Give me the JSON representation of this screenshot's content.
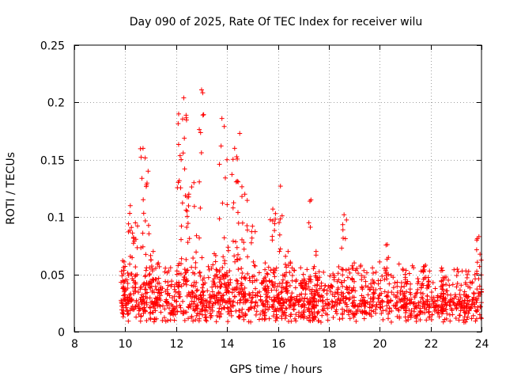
{
  "chart_data": {
    "type": "scatter",
    "title": "Day 090 of 2025, Rate Of TEC Index for receiver wilu",
    "xlabel": "GPS time / hours",
    "ylabel": "ROTI / TECUs",
    "xlim": [
      8,
      24
    ],
    "ylim": [
      0,
      0.25
    ],
    "x_ticks": [
      8,
      10,
      12,
      14,
      16,
      18,
      20,
      22,
      24
    ],
    "x_tick_labels": [
      "8",
      "10",
      "12",
      "14",
      "16",
      "18",
      "20",
      "22",
      "24"
    ],
    "y_ticks": [
      0,
      0.05,
      0.1,
      0.15,
      0.2,
      0.25
    ],
    "y_tick_labels": [
      "0",
      "0.05",
      "0.1",
      "0.15",
      "0.2",
      "0.25"
    ],
    "grid": true,
    "marker": "+",
    "color": "#ff0000",
    "series": [
      {
        "name": "ROTI",
        "peaks": [
          {
            "x": 9.9,
            "y": 0.062
          },
          {
            "x": 10.0,
            "y": 0.045
          },
          {
            "x": 10.2,
            "y": 0.11
          },
          {
            "x": 10.4,
            "y": 0.095
          },
          {
            "x": 10.7,
            "y": 0.16
          },
          {
            "x": 10.9,
            "y": 0.14
          },
          {
            "x": 11.1,
            "y": 0.07
          },
          {
            "x": 11.3,
            "y": 0.06
          },
          {
            "x": 12.1,
            "y": 0.19
          },
          {
            "x": 12.3,
            "y": 0.204
          },
          {
            "x": 12.5,
            "y": 0.12
          },
          {
            "x": 12.7,
            "y": 0.13
          },
          {
            "x": 13.0,
            "y": 0.211
          },
          {
            "x": 13.5,
            "y": 0.068
          },
          {
            "x": 13.8,
            "y": 0.186
          },
          {
            "x": 14.0,
            "y": 0.15
          },
          {
            "x": 14.3,
            "y": 0.16
          },
          {
            "x": 14.5,
            "y": 0.173
          },
          {
            "x": 14.7,
            "y": 0.12
          },
          {
            "x": 15.0,
            "y": 0.092
          },
          {
            "x": 15.5,
            "y": 0.06
          },
          {
            "x": 15.8,
            "y": 0.107
          },
          {
            "x": 16.1,
            "y": 0.127
          },
          {
            "x": 16.4,
            "y": 0.07
          },
          {
            "x": 17.0,
            "y": 0.05
          },
          {
            "x": 17.3,
            "y": 0.115
          },
          {
            "x": 17.5,
            "y": 0.07
          },
          {
            "x": 18.6,
            "y": 0.102
          },
          {
            "x": 19.0,
            "y": 0.06
          },
          {
            "x": 20.3,
            "y": 0.076
          },
          {
            "x": 21.0,
            "y": 0.05
          },
          {
            "x": 21.8,
            "y": 0.058
          },
          {
            "x": 22.5,
            "y": 0.045
          },
          {
            "x": 23.9,
            "y": 0.083
          }
        ]
      }
    ]
  }
}
